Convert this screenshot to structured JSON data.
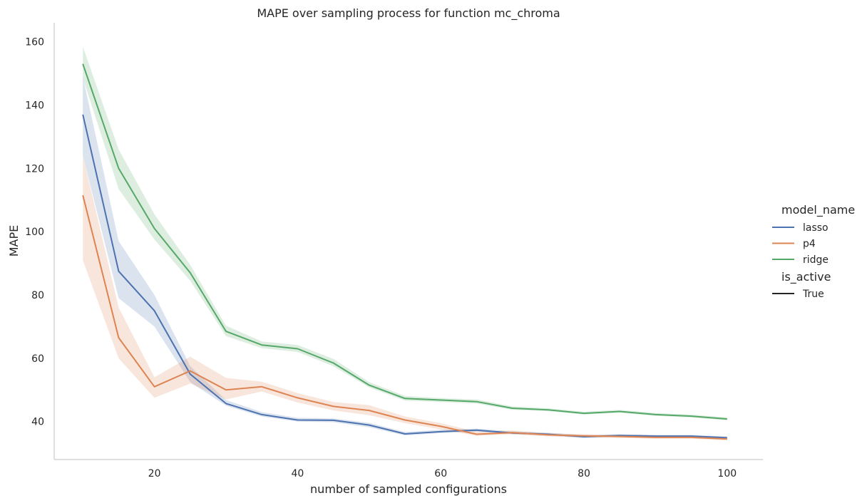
{
  "chart_data": {
    "type": "line",
    "title": "MAPE over sampling process for function mc_chroma",
    "xlabel": "number of sampled configurations",
    "ylabel": "MAPE",
    "xlim": [
      6,
      105
    ],
    "ylim": [
      28,
      166
    ],
    "xticks": [
      20,
      40,
      60,
      80,
      100
    ],
    "yticks": [
      40,
      60,
      80,
      100,
      120,
      140,
      160
    ],
    "grid": false,
    "legend": {
      "placement": "right",
      "hue_title": "model_name",
      "style_title": "is_active",
      "style_entries": [
        "True"
      ]
    },
    "x": [
      10,
      15,
      20,
      25,
      30,
      35,
      40,
      45,
      50,
      55,
      60,
      65,
      70,
      75,
      80,
      85,
      90,
      95,
      100
    ],
    "series": [
      {
        "name": "lasso",
        "color": "#4c72b0",
        "values": [
          137,
          87.5,
          75,
          55,
          45.7,
          42.2,
          40.5,
          40.4,
          38.9,
          36.1,
          36.8,
          37.3,
          36.4,
          36.0,
          35.2,
          35.6,
          35.4,
          35.4,
          34.9
        ],
        "lower": [
          124,
          79,
          70,
          52.5,
          45.0,
          41.6,
          40.0,
          39.8,
          38.2,
          35.6,
          36.4,
          36.8,
          36.0,
          35.6,
          34.8,
          35.2,
          35.0,
          35.0,
          34.6
        ],
        "upper": [
          149,
          97,
          80,
          57.5,
          46.8,
          43.0,
          41.2,
          41.0,
          39.6,
          36.7,
          37.4,
          37.8,
          36.9,
          36.5,
          35.7,
          36.0,
          35.8,
          35.8,
          35.3
        ]
      },
      {
        "name": "p4",
        "color": "#dd8452",
        "values": [
          111.5,
          66.5,
          51,
          56,
          50,
          51,
          47.5,
          44.8,
          43.5,
          40.5,
          38.5,
          36.0,
          36.5,
          35.8,
          35.5,
          35.3,
          35.0,
          35.0,
          34.5
        ],
        "lower": [
          91,
          60,
          47.5,
          52,
          47,
          49.5,
          46.0,
          43.5,
          42.0,
          39.5,
          37.5,
          35.5,
          36.0,
          35.3,
          35.0,
          34.8,
          34.6,
          34.6,
          34.0
        ],
        "upper": [
          124,
          76,
          54,
          60.5,
          53.8,
          52.6,
          49.0,
          46.2,
          45.2,
          41.6,
          39.5,
          36.8,
          37.2,
          36.3,
          36.0,
          35.8,
          35.4,
          35.4,
          35.0
        ]
      },
      {
        "name": "ridge",
        "color": "#55a868",
        "values": [
          153,
          120,
          101,
          87,
          68.5,
          64.2,
          63,
          58.5,
          51.5,
          47.3,
          46.8,
          46.3,
          44.2,
          43.7,
          42.6,
          43.2,
          42.2,
          41.7,
          40.8
        ],
        "lower": [
          148.5,
          113.5,
          97.5,
          84.5,
          67,
          63.2,
          62,
          57.5,
          50.8,
          46.6,
          46.2,
          45.7,
          43.7,
          43.3,
          42.2,
          42.8,
          41.8,
          41.3,
          40.4
        ],
        "upper": [
          158.5,
          126,
          105.5,
          89.5,
          70.3,
          65.3,
          64.2,
          59.8,
          52.5,
          48.1,
          47.4,
          47.0,
          44.8,
          44.2,
          43.1,
          43.7,
          42.7,
          42.2,
          41.3
        ]
      }
    ]
  }
}
